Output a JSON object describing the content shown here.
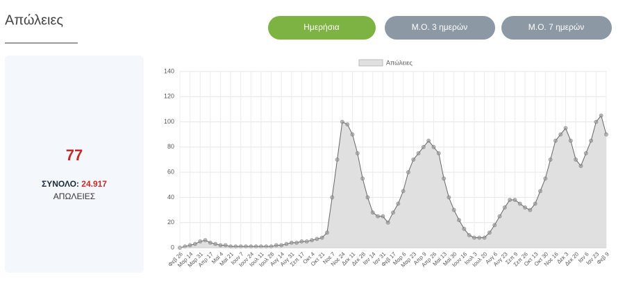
{
  "header": {
    "title": "Απώλειες",
    "buttons": [
      "Ημερήσια",
      "Μ.Ο. 3 ημερών",
      "Μ.Ο. 7 ημερών"
    ]
  },
  "summary": {
    "today": 77,
    "total_label": "ΣΥΝΟΛΟ:",
    "total": "24.917",
    "unit": "ΑΠΩΛΕΙΕΣ"
  },
  "chart_data": {
    "type": "area",
    "color": "#666666",
    "fill": "#e0e0e0",
    "series": [
      {
        "name": "Απώλειες",
        "values": [
          0,
          1,
          2,
          3,
          5,
          6,
          4,
          3,
          2,
          2,
          1,
          1,
          1,
          1,
          1,
          1,
          1,
          1,
          1,
          2,
          2,
          3,
          4,
          4,
          5,
          5,
          6,
          7,
          8,
          12,
          40,
          70,
          100,
          98,
          90,
          75,
          55,
          40,
          28,
          25,
          25,
          20,
          28,
          35,
          45,
          60,
          70,
          75,
          80,
          85,
          80,
          75,
          55,
          40,
          30,
          22,
          15,
          10,
          8,
          8,
          8,
          12,
          18,
          25,
          32,
          38,
          38,
          35,
          32,
          30,
          35,
          45,
          55,
          70,
          85,
          90,
          95,
          85,
          70,
          65,
          75,
          85,
          100,
          105,
          90
        ]
      }
    ],
    "categories": [
      "Φεβ 26",
      null,
      "Μαρ 14",
      null,
      "Μαρ 31",
      null,
      "Απρ 17",
      null,
      "Μαϊ 4",
      null,
      "Μαϊ 21",
      null,
      "Ιουν 7",
      null,
      "Ιουν 24",
      null,
      "Ιουλ 11",
      null,
      "Ιουλ 28",
      null,
      "Αυγ 14",
      null,
      "Αυγ 31",
      null,
      "Σεπ 17",
      null,
      "Οκτ 4",
      null,
      "Οκτ 21",
      null,
      "Νοε 7",
      null,
      "Νοε 24",
      null,
      "Δεκ 11",
      null,
      "Δεκ 28",
      null,
      "Ιαν 14",
      null,
      "Ιαν 31",
      null,
      "Φεβ 17",
      null,
      "Μαρ 6",
      null,
      "Μαρ 23",
      null,
      "Απρ 9",
      null,
      "Απρ 26",
      null,
      "Μαϊ 13",
      null,
      "Μαϊ 30",
      null,
      "Ιουν 16",
      null,
      "Ιουλ 3",
      null,
      "Ιουλ 20",
      null,
      "Αυγ 6",
      null,
      "Αυγ 23",
      null,
      "Σεπ 9",
      null,
      "Σεπ 26",
      null,
      "Οκτ 13",
      null,
      "Οκτ 30",
      null,
      "Νοε 16",
      null,
      "Δεκ 3",
      null,
      "Δεκ 20",
      null,
      "Ιαν 6",
      null,
      "Ιαν 23",
      null,
      "Φεβ 9"
    ],
    "ylim": [
      0,
      140
    ],
    "yticks": [
      0,
      20,
      40,
      60,
      80,
      100,
      120,
      140
    ],
    "grid": true,
    "legend": "top"
  }
}
